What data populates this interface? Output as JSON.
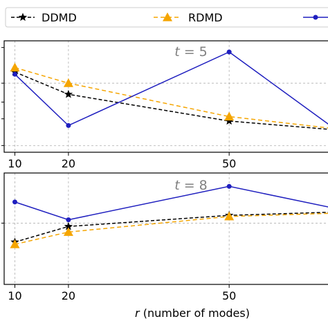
{
  "chart_data": [
    {
      "type": "line",
      "panel_label": "t = 5",
      "panel_label_var": "t",
      "panel_label_eq": " = 5",
      "x": [
        10,
        20,
        50,
        70
      ],
      "xticks": [
        10,
        20,
        50
      ],
      "xlim": [
        8,
        70
      ],
      "ylim": [
        0,
        1
      ],
      "grid": true,
      "series": [
        {
          "name": "DDMD",
          "values": [
            0.72,
            0.52,
            0.28,
            0.2
          ],
          "color": "#000000",
          "dash": "5,3",
          "marker": "star"
        },
        {
          "name": "RDMD",
          "values": [
            0.76,
            0.62,
            0.32,
            0.21
          ],
          "color": "#f5a500",
          "dash": "6,4",
          "marker": "triangle"
        },
        {
          "name": "",
          "values": [
            0.7,
            0.24,
            0.9,
            0.2
          ],
          "color": "#1f1fbf",
          "dash": "",
          "marker": "circle"
        }
      ]
    },
    {
      "type": "line",
      "panel_label": "t = 8",
      "panel_label_var": "t",
      "panel_label_eq": " = 8",
      "x": [
        10,
        20,
        50,
        70
      ],
      "xticks": [
        10,
        20,
        50
      ],
      "xlim": [
        8,
        70
      ],
      "ylim": [
        0,
        1
      ],
      "grid": true,
      "xlabel_var": "r",
      "xlabel_rest": " (number of modes)",
      "series": [
        {
          "name": "DDMD",
          "values": [
            0.38,
            0.52,
            0.62,
            0.65
          ],
          "color": "#000000",
          "dash": "5,3",
          "marker": "star"
        },
        {
          "name": "RDMD",
          "values": [
            0.36,
            0.47,
            0.61,
            0.64
          ],
          "color": "#f5a500",
          "dash": "6,4",
          "marker": "triangle"
        },
        {
          "name": "",
          "values": [
            0.74,
            0.58,
            0.88,
            0.68
          ],
          "color": "#1f1fbf",
          "dash": "",
          "marker": "circle"
        }
      ]
    }
  ],
  "legend": {
    "placement": "top",
    "entries": [
      "DDMD",
      "RDMD",
      ""
    ]
  }
}
